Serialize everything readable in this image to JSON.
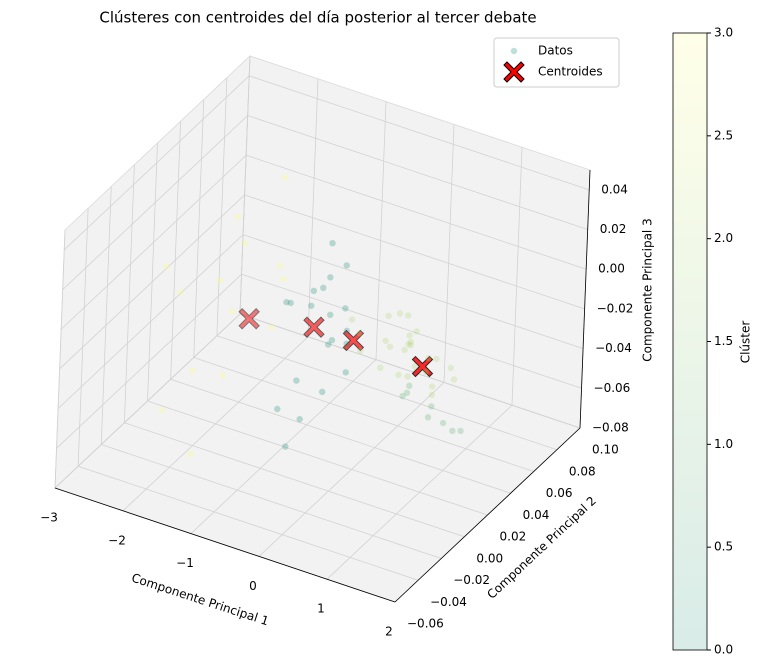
{
  "chart_data": {
    "type": "scatter3d",
    "title": "Clústeres con centroides del día posterior al tercer debate",
    "xlabel": "Componente Principal 1",
    "ylabel": "Componente Principal 2",
    "zlabel": "Componente Principal 3",
    "colorbar_label": "Clúster",
    "colormap": "summer",
    "clim": [
      0,
      3
    ],
    "cbticks": [
      {
        "value": 0,
        "label": "0.0"
      },
      {
        "value": 0.5,
        "label": "0.5"
      },
      {
        "value": 1,
        "label": "1.0"
      },
      {
        "value": 1.5,
        "label": "1.5"
      },
      {
        "value": 2,
        "label": "2.0"
      },
      {
        "value": 2.5,
        "label": "2.5"
      },
      {
        "value": 3,
        "label": "3.0"
      }
    ],
    "xlim": [
      -3,
      2
    ],
    "ylim": [
      -0.06,
      0.1
    ],
    "zlim": [
      -0.08,
      0.05
    ],
    "xticks": [
      {
        "value": -3,
        "label": "−3"
      },
      {
        "value": -2,
        "label": "−2"
      },
      {
        "value": -1,
        "label": "−1"
      },
      0,
      1,
      2
    ],
    "yticks": [
      {
        "value": -0.06,
        "label": "−0.06"
      },
      {
        "value": -0.04,
        "label": "−0.04"
      },
      {
        "value": -0.02,
        "label": "−0.02"
      },
      {
        "value": 0,
        "label": "0.00"
      },
      0.02,
      0.04,
      0.06,
      0.08,
      {
        "value": 0.1,
        "label": "0.10"
      }
    ],
    "zticks": [
      {
        "value": -0.08,
        "label": "−0.08"
      },
      {
        "value": -0.06,
        "label": "−0.06"
      },
      {
        "value": -0.04,
        "label": "−0.04"
      },
      {
        "value": -0.02,
        "label": "−0.02"
      },
      {
        "value": 0,
        "label": "0.00"
      },
      0.02,
      0.04
    ],
    "grid": true,
    "legend": "upper right",
    "series": [
      {
        "name": "Datos",
        "alpha": 0.25,
        "x": [
          0.1,
          0.3,
          0.5,
          0.7,
          0.9,
          -0.2,
          0.0,
          0.2,
          0.4,
          0.6,
          0.8,
          1.0,
          -0.4,
          0.35,
          0.55,
          0.15,
          0.75,
          0.45,
          0.25,
          0.65,
          -0.1,
          0.85,
          0.05,
          0.5,
          0.3,
          -1.0,
          -0.8,
          -0.6,
          -1.2,
          -0.9,
          -0.7,
          -0.5,
          -1.1,
          -0.85,
          -0.4,
          -0.95,
          -0.65,
          -0.75,
          -1.3,
          -0.55,
          -0.3,
          -0.9,
          -0.7,
          -1.05,
          -0.6,
          0.6,
          0.8,
          1.0,
          0.7,
          1.2,
          0.9,
          1.4,
          0.5,
          -2.8,
          -2.5,
          -2.2,
          -2.0,
          -1.8,
          -1.6,
          -1.4,
          -2.6,
          -2.3,
          -1.9,
          -1.5,
          -2.9,
          -2.1,
          -1.7
        ],
        "y": [
          0.04,
          0.045,
          0.038,
          0.042,
          0.05,
          0.035,
          0.048,
          0.03,
          0.044,
          0.036,
          0.04,
          0.047,
          0.04,
          0.052,
          0.033,
          0.041,
          0.046,
          0.039,
          0.05,
          0.043,
          0.03,
          0.037,
          0.055,
          0.028,
          0.049,
          0.04,
          0.045,
          0.035,
          0.03,
          0.05,
          0.038,
          0.042,
          0.048,
          0.02,
          0.036,
          0.01,
          0.0,
          0.055,
          0.04,
          0.025,
          0.03,
          0.044,
          0.015,
          0.06,
          0.046,
          0.03,
          0.04,
          0.025,
          0.02,
          0.035,
          0.045,
          0.03,
          0.038,
          0.02,
          0.05,
          0.01,
          0.04,
          0.06,
          0.0,
          0.03,
          0.07,
          -0.01,
          0.025,
          0.045,
          0.04,
          0.08,
          -0.02
        ],
        "z": [
          -0.025,
          -0.03,
          -0.02,
          -0.028,
          -0.035,
          -0.022,
          -0.018,
          -0.032,
          -0.026,
          -0.03,
          -0.04,
          -0.038,
          -0.02,
          -0.024,
          -0.034,
          -0.028,
          -0.03,
          -0.022,
          -0.016,
          -0.036,
          -0.027,
          -0.042,
          -0.02,
          -0.031,
          -0.025,
          -0.02,
          -0.025,
          -0.03,
          -0.015,
          -0.01,
          -0.035,
          -0.028,
          -0.018,
          -0.045,
          -0.03,
          -0.055,
          -0.065,
          -0.005,
          -0.022,
          -0.05,
          -0.04,
          -0.012,
          -0.06,
          0.0,
          -0.02,
          -0.04,
          -0.05,
          -0.045,
          -0.035,
          -0.055,
          -0.06,
          -0.05,
          -0.042,
          -0.01,
          -0.03,
          -0.05,
          0.0,
          -0.02,
          -0.04,
          -0.03,
          -0.01,
          -0.06,
          -0.025,
          -0.015,
          -0.035,
          0.01,
          -0.07
        ],
        "values": [
          2,
          2,
          2,
          2,
          2,
          2,
          2,
          2,
          2,
          2,
          2,
          2,
          2,
          2,
          2,
          2,
          2,
          2,
          2,
          2,
          2,
          2,
          2,
          2,
          2,
          0,
          0,
          0,
          0,
          0,
          0,
          0,
          0,
          0,
          0,
          0,
          0,
          0,
          0,
          0,
          0,
          0,
          0,
          0,
          0,
          1,
          1,
          1,
          1,
          1,
          1,
          1,
          1,
          3,
          3,
          3,
          3,
          3,
          3,
          3,
          3,
          3,
          3,
          3,
          3,
          3,
          3
        ]
      },
      {
        "name": "Centroides",
        "color": "#ff0000",
        "x": [
          -0.9,
          0.73,
          -0.32,
          -1.7
        ],
        "y": [
          0.037,
          0.035,
          0.037,
          0.028
        ],
        "z": [
          -0.028,
          -0.028,
          -0.028,
          -0.028
        ]
      }
    ]
  }
}
